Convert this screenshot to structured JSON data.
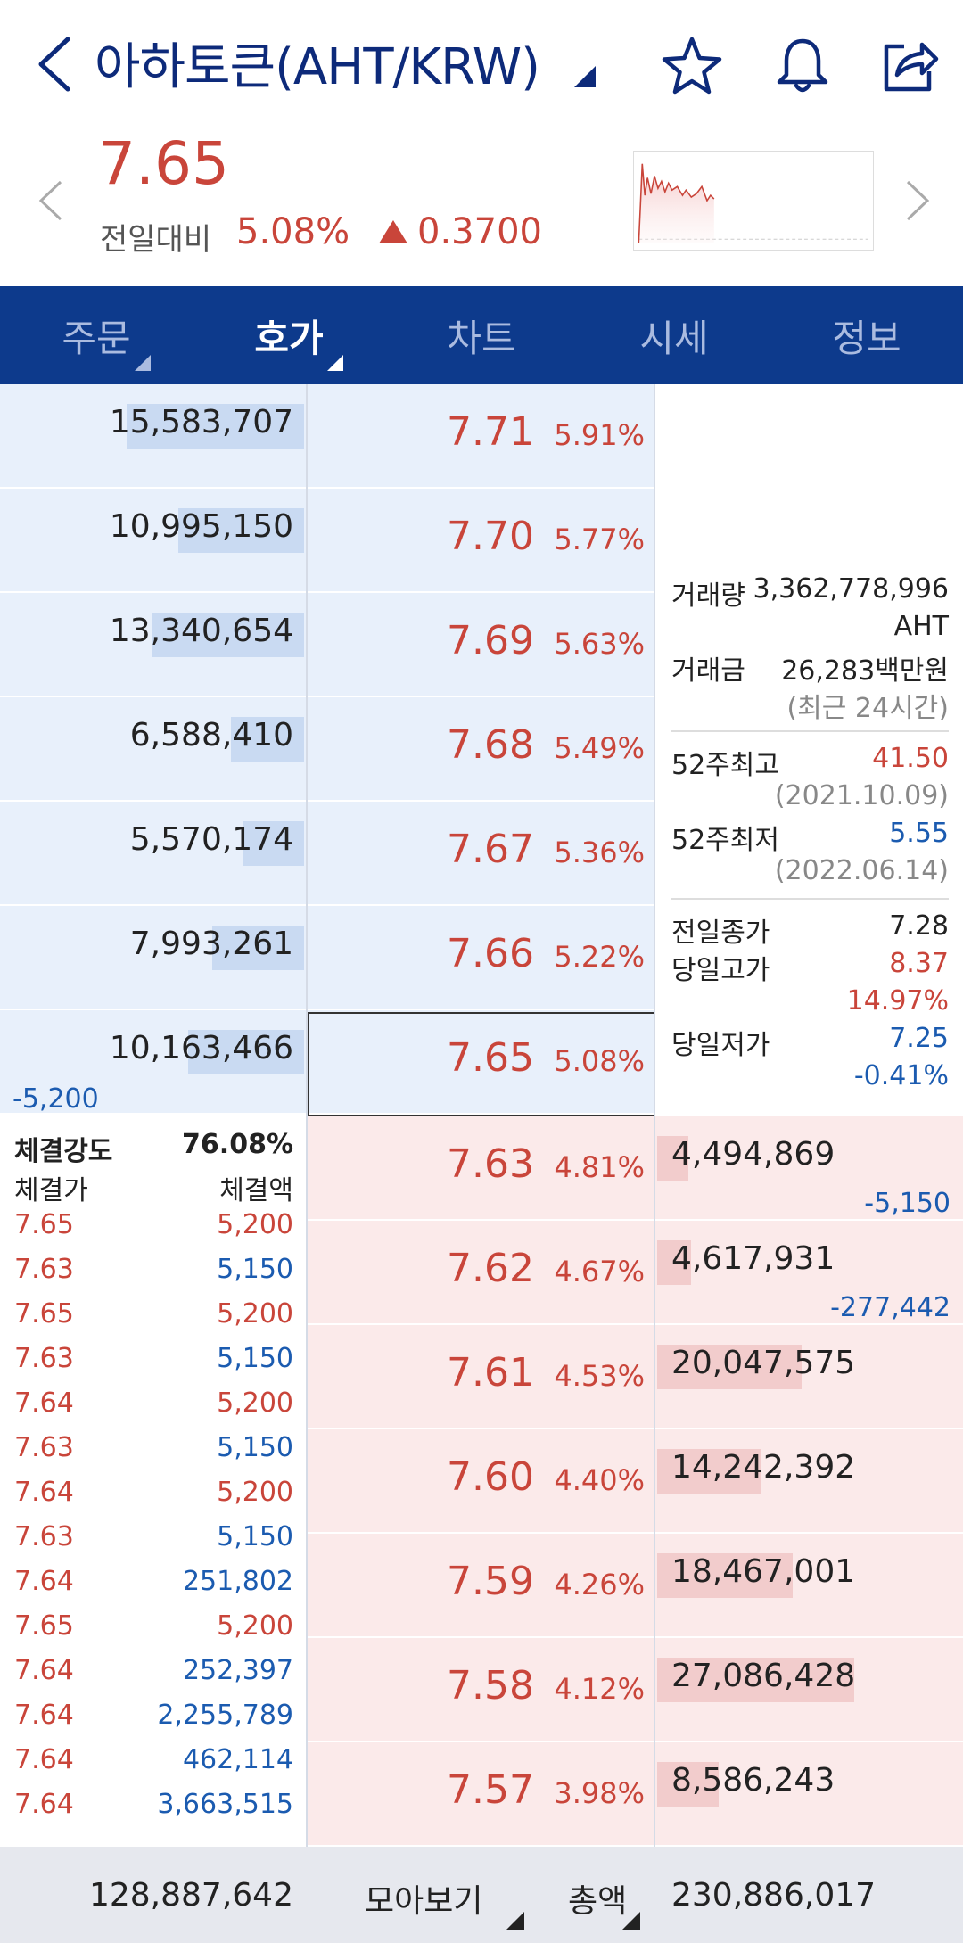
{
  "header": {
    "title": "아하토큰(AHT/KRW)"
  },
  "price": {
    "current": "7.65",
    "compare_label": "전일대비",
    "change_rate": "5.08%",
    "change_diff": "0.3700"
  },
  "tabs": [
    {
      "label": "주문",
      "caret": true
    },
    {
      "label": "호가",
      "caret": true,
      "active": true
    },
    {
      "label": "차트"
    },
    {
      "label": "시세"
    },
    {
      "label": "정보"
    }
  ],
  "asks": [
    {
      "volume": "15,583,707",
      "price": "7.71",
      "rate": "5.91%",
      "fill": 0.58
    },
    {
      "volume": "10,995,150",
      "price": "7.70",
      "rate": "5.77%",
      "fill": 0.41
    },
    {
      "volume": "13,340,654",
      "price": "7.69",
      "rate": "5.63%",
      "fill": 0.5
    },
    {
      "volume": "6,588,410",
      "price": "7.68",
      "rate": "5.49%",
      "fill": 0.24
    },
    {
      "volume": "5,570,174",
      "price": "7.67",
      "rate": "5.36%",
      "fill": 0.2
    },
    {
      "volume": "7,993,261",
      "price": "7.66",
      "rate": "5.22%",
      "fill": 0.3
    },
    {
      "volume": "10,163,466",
      "price": "7.65",
      "rate": "5.08%",
      "fill": 0.38,
      "sub": "-5,200"
    }
  ],
  "bids": [
    {
      "volume": "4,494,869",
      "price": "7.63",
      "rate": "4.81%",
      "fill": 0.1,
      "sub": "-5,150"
    },
    {
      "volume": "4,617,931",
      "price": "7.62",
      "rate": "4.67%",
      "fill": 0.11,
      "sub": "-277,442"
    },
    {
      "volume": "20,047,575",
      "price": "7.61",
      "rate": "4.53%",
      "fill": 0.47
    },
    {
      "volume": "14,242,392",
      "price": "7.60",
      "rate": "4.40%",
      "fill": 0.34
    },
    {
      "volume": "18,467,001",
      "price": "7.59",
      "rate": "4.26%",
      "fill": 0.44
    },
    {
      "volume": "27,086,428",
      "price": "7.58",
      "rate": "4.12%",
      "fill": 0.64
    },
    {
      "volume": "8,586,243",
      "price": "7.57",
      "rate": "3.98%",
      "fill": 0.2
    }
  ],
  "info": {
    "volume_label": "거래량",
    "volume_value": "3,362,778,996",
    "volume_unit": "AHT",
    "amount_label": "거래금",
    "amount_value": "26,283백만원",
    "period_note": "(최근 24시간)",
    "high52_label": "52주최고",
    "high52_value": "41.50",
    "high52_date": "(2021.10.09)",
    "low52_label": "52주최저",
    "low52_value": "5.55",
    "low52_date": "(2022.06.14)",
    "prev_close_label": "전일종가",
    "prev_close_value": "7.28",
    "day_high_label": "당일고가",
    "day_high_value": "8.37",
    "day_high_rate": "14.97%",
    "day_low_label": "당일저가",
    "day_low_value": "7.25",
    "day_low_rate": "-0.41%"
  },
  "trades": {
    "strength_label": "체결강도",
    "strength_value": "76.08%",
    "price_header": "체결가",
    "amount_header": "체결액",
    "rows": [
      {
        "price": "7.65",
        "amount": "5,200",
        "color": "red"
      },
      {
        "price": "7.63",
        "amount": "5,150",
        "color": "blue"
      },
      {
        "price": "7.65",
        "amount": "5,200",
        "color": "red"
      },
      {
        "price": "7.63",
        "amount": "5,150",
        "color": "blue"
      },
      {
        "price": "7.64",
        "amount": "5,200",
        "color": "red"
      },
      {
        "price": "7.63",
        "amount": "5,150",
        "color": "blue"
      },
      {
        "price": "7.64",
        "amount": "5,200",
        "color": "red"
      },
      {
        "price": "7.63",
        "amount": "5,150",
        "color": "blue"
      },
      {
        "price": "7.64",
        "amount": "251,802",
        "color": "blue"
      },
      {
        "price": "7.65",
        "amount": "5,200",
        "color": "red"
      },
      {
        "price": "7.64",
        "amount": "252,397",
        "color": "blue"
      },
      {
        "price": "7.64",
        "amount": "2,255,789",
        "color": "blue"
      },
      {
        "price": "7.64",
        "amount": "462,114",
        "color": "blue"
      },
      {
        "price": "7.64",
        "amount": "3,663,515",
        "color": "blue"
      }
    ]
  },
  "footer": {
    "ask_total": "128,887,642",
    "view_mode": "모아보기",
    "total_mode": "총액",
    "bid_total": "230,886,017"
  },
  "colors": {
    "up": "#c9453a",
    "down": "#1b5bb0",
    "brand": "#0d3a8c"
  }
}
